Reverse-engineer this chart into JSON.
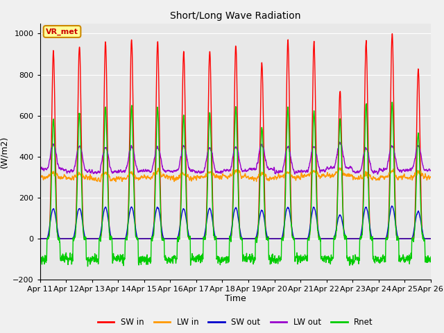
{
  "title": "Short/Long Wave Radiation",
  "xlabel": "Time",
  "ylabel": "(W/m2)",
  "ylim": [
    -200,
    1050
  ],
  "background_color": "#f0f0f0",
  "plot_bg_color": "#e8e8e8",
  "grid_color": "#ffffff",
  "annotation_text": "VR_met",
  "annotation_bg": "#ffff99",
  "annotation_border": "#cc8800",
  "annotation_text_color": "#cc0000",
  "tick_labels": [
    "Apr 11",
    "Apr 12",
    "Apr 13",
    "Apr 14",
    "Apr 15",
    "Apr 16",
    "Apr 17",
    "Apr 18",
    "Apr 19",
    "Apr 20",
    "Apr 21",
    "Apr 22",
    "Apr 23",
    "Apr 24",
    "Apr 25",
    "Apr 26"
  ],
  "n_days": 15,
  "pts_per_day": 144,
  "SW_in_color": "#ff0000",
  "LW_in_color": "#ff9900",
  "SW_out_color": "#0000cc",
  "LW_out_color": "#9900cc",
  "Rnet_color": "#00cc00",
  "line_width": 1.0,
  "legend_labels": [
    "SW in",
    "LW in",
    "SW out",
    "LW out",
    "Rnet"
  ],
  "legend_colors": [
    "#ff0000",
    "#ff9900",
    "#0000cc",
    "#9900cc",
    "#00cc00"
  ],
  "sw_peaks": [
    910,
    940,
    960,
    970,
    960,
    910,
    920,
    940,
    860,
    970,
    960,
    720,
    960,
    1000,
    830
  ],
  "rnet_peaks": [
    580,
    620,
    640,
    650,
    635,
    600,
    610,
    635,
    540,
    640,
    620,
    580,
    650,
    660,
    510
  ],
  "lw_out_day": [
    370,
    360,
    355,
    360,
    360,
    360,
    355,
    360,
    370,
    355,
    360,
    375,
    355,
    365,
    365
  ],
  "lw_in_base": [
    300,
    295,
    290,
    295,
    300,
    295,
    300,
    305,
    295,
    300,
    305,
    310,
    295,
    300,
    300
  ]
}
